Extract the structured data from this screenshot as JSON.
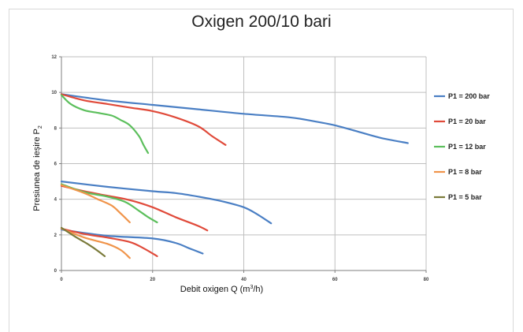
{
  "chart_data": {
    "type": "line",
    "title": "Oxigen 200/10 bari",
    "xlabel_prefix": "Debit oxigen Q (m",
    "xlabel_sup": "3",
    "xlabel_suffix": "/h)",
    "ylabel_prefix": "Presiunea de ieșire P",
    "ylabel_sub": "2",
    "xlim": [
      0,
      80
    ],
    "ylim": [
      0,
      12
    ],
    "xticks": [
      "0",
      "20",
      "40",
      "60",
      "80"
    ],
    "yticks": [
      "0",
      "2",
      "4",
      "6",
      "8",
      "10",
      "12"
    ],
    "grid": true,
    "legend_position": "right",
    "series": [
      {
        "name": "P1 = 200 bar",
        "color": "#4a7fc4",
        "curves": [
          [
            [
              0,
              9.9
            ],
            [
              10,
              9.55
            ],
            [
              20,
              9.3
            ],
            [
              30,
              9.05
            ],
            [
              40,
              8.8
            ],
            [
              50,
              8.6
            ],
            [
              55,
              8.4
            ],
            [
              60,
              8.15
            ],
            [
              65,
              7.8
            ],
            [
              70,
              7.45
            ],
            [
              76,
              7.15
            ]
          ],
          [
            [
              0,
              5.0
            ],
            [
              10,
              4.7
            ],
            [
              20,
              4.45
            ],
            [
              25,
              4.35
            ],
            [
              30,
              4.15
            ],
            [
              35,
              3.9
            ],
            [
              40,
              3.55
            ],
            [
              43,
              3.15
            ],
            [
              46,
              2.65
            ]
          ],
          [
            [
              0,
              2.3
            ],
            [
              10,
              1.95
            ],
            [
              20,
              1.8
            ],
            [
              25,
              1.55
            ],
            [
              28,
              1.25
            ],
            [
              31,
              0.95
            ]
          ]
        ]
      },
      {
        "name": "P1 = 20 bar",
        "color": "#e04a3a",
        "curves": [
          [
            [
              0,
              9.9
            ],
            [
              5,
              9.55
            ],
            [
              10,
              9.35
            ],
            [
              15,
              9.15
            ],
            [
              20,
              8.95
            ],
            [
              25,
              8.6
            ],
            [
              30,
              8.1
            ],
            [
              33,
              7.55
            ],
            [
              36,
              7.05
            ]
          ],
          [
            [
              0,
              4.75
            ],
            [
              5,
              4.45
            ],
            [
              10,
              4.2
            ],
            [
              15,
              3.95
            ],
            [
              20,
              3.55
            ],
            [
              25,
              3.0
            ],
            [
              30,
              2.5
            ],
            [
              32,
              2.25
            ]
          ],
          [
            [
              0,
              2.35
            ],
            [
              5,
              2.05
            ],
            [
              10,
              1.85
            ],
            [
              15,
              1.6
            ],
            [
              18,
              1.25
            ],
            [
              21,
              0.8
            ]
          ]
        ]
      },
      {
        "name": "P1 = 12 bar",
        "color": "#5cbf5c",
        "curves": [
          [
            [
              0,
              9.85
            ],
            [
              2,
              9.35
            ],
            [
              5,
              9.0
            ],
            [
              8,
              8.85
            ],
            [
              11,
              8.7
            ],
            [
              13,
              8.45
            ],
            [
              15,
              8.15
            ],
            [
              17,
              7.55
            ],
            [
              18,
              7.05
            ],
            [
              19,
              6.6
            ]
          ],
          [
            [
              0,
              4.85
            ],
            [
              5,
              4.4
            ],
            [
              10,
              4.15
            ],
            [
              14,
              3.85
            ],
            [
              17,
              3.35
            ],
            [
              19,
              3.0
            ],
            [
              21,
              2.7
            ]
          ]
        ]
      },
      {
        "name": "P1 = 8 bar",
        "color": "#f0944a",
        "curves": [
          [
            [
              0,
              4.8
            ],
            [
              5,
              4.35
            ],
            [
              8,
              4.0
            ],
            [
              11,
              3.65
            ],
            [
              13,
              3.2
            ],
            [
              15,
              2.7
            ]
          ],
          [
            [
              0,
              2.35
            ],
            [
              5,
              1.85
            ],
            [
              10,
              1.5
            ],
            [
              13,
              1.15
            ],
            [
              15,
              0.7
            ]
          ]
        ]
      },
      {
        "name": "P1 = 5 bar",
        "color": "#7a7a3a",
        "curves": [
          [
            [
              0,
              2.4
            ],
            [
              3,
              1.9
            ],
            [
              6,
              1.45
            ],
            [
              8,
              1.1
            ],
            [
              9.5,
              0.8
            ]
          ]
        ]
      }
    ]
  }
}
